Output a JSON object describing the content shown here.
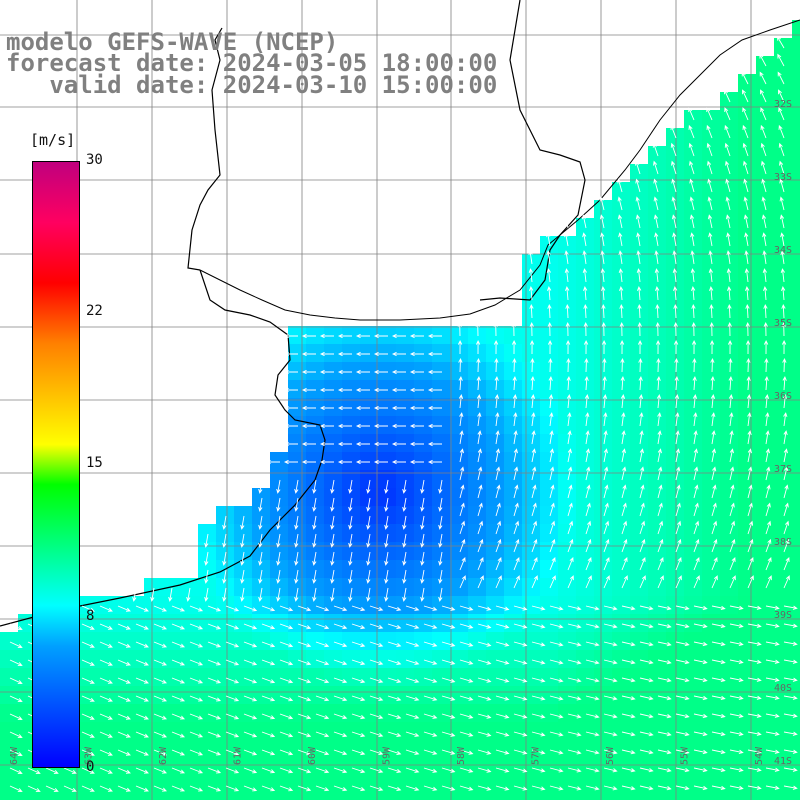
{
  "header": {
    "line1": "modelo GEFS-WAVE (NCEP)",
    "line2": "forecast date: 2024-03-05 18:00:00",
    "line3": "   valid date: 2024-03-10 15:00:00"
  },
  "colorbar": {
    "unit": "[m/s]",
    "ticks": [
      "30",
      "22",
      "15",
      "8",
      "0"
    ],
    "colors": [
      "#0000ff",
      "#00a0ff",
      "#00ffff",
      "#00ff00",
      "#ffff00",
      "#ff8000",
      "#ff0000",
      "#ff0060",
      "#c0007e"
    ]
  },
  "lat_labels": [
    "32S",
    "33S",
    "34S",
    "35S",
    "36S",
    "37S",
    "38S",
    "39S",
    "40S",
    "41S"
  ],
  "lon_labels": [
    "64W",
    "63W",
    "62W",
    "61W",
    "60W",
    "59W",
    "58W",
    "57W",
    "56W",
    "55W",
    "54W"
  ],
  "field": {
    "legend_range": [
      0,
      30
    ],
    "colors": {
      "land": "#ffffff",
      "grid": "#808080",
      "coast": "#000000",
      "arrow": "#ffffff"
    }
  }
}
